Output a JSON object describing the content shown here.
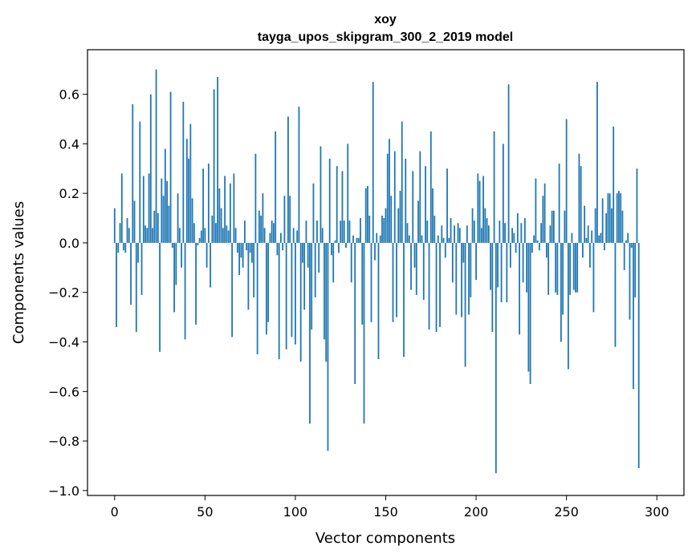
{
  "chart_data": {
    "type": "bar",
    "title": "xoy",
    "subtitle": "tayga_upos_skipgram_300_2_2019 model",
    "xlabel": "Vector components",
    "ylabel": "Components values",
    "xlim": [
      -15,
      315
    ],
    "ylim": [
      -1.02,
      0.78
    ],
    "xticks": [
      0,
      50,
      100,
      150,
      200,
      250,
      300
    ],
    "yticks": [
      -1.0,
      -0.8,
      -0.6,
      -0.4,
      -0.2,
      0.0,
      0.2,
      0.4,
      0.6
    ],
    "ytick_labels": [
      "−1.0",
      "−0.8",
      "−0.6",
      "−0.4",
      "−0.2",
      "0.0",
      "0.2",
      "0.4",
      "0.6"
    ],
    "color": "#1f77b4",
    "grid": false,
    "values": [
      0.14,
      -0.34,
      -0.04,
      0.08,
      0.28,
      -0.03,
      -0.04,
      0.1,
      0.06,
      -0.25,
      0.56,
      0.17,
      -0.36,
      -0.08,
      0.49,
      -0.21,
      0.27,
      0.07,
      0.06,
      0.28,
      0.6,
      0.06,
      0.13,
      0.7,
      0.12,
      -0.44,
      0.26,
      0.19,
      0.38,
      0.25,
      0.15,
      0.61,
      -0.02,
      -0.28,
      -0.17,
      0.2,
      0.06,
      -0.1,
      0.57,
      -0.39,
      0.42,
      0.34,
      0.48,
      0.18,
      0.08,
      -0.33,
      -0.01,
      0.02,
      0.05,
      0.3,
      0.06,
      -0.1,
      0.32,
      -0.18,
      0.11,
      0.62,
      0.08,
      0.67,
      0.22,
      0.14,
      0.06,
      0.27,
      0.07,
      0.05,
      0.24,
      -0.38,
      0.28,
      0.06,
      -0.04,
      -0.13,
      -0.06,
      -0.1,
      0.09,
      -0.03,
      -0.27,
      -0.04,
      -0.08,
      -0.22,
      0.36,
      -0.45,
      0.13,
      0.11,
      0.2,
      0.06,
      -0.37,
      -0.32,
      0.04,
      0.09,
      0.08,
      0.45,
      -0.05,
      -0.47,
      0.04,
      -0.03,
      0.19,
      -0.43,
      0.51,
      0.19,
      -0.38,
      0.06,
      -0.41,
      0.05,
      0.55,
      -0.48,
      -0.08,
      -0.27,
      0.09,
      -0.1,
      -0.73,
      -0.35,
      0.24,
      -0.22,
      0.09,
      -0.12,
      0.39,
      0.06,
      -0.39,
      -0.48,
      -0.84,
      0.34,
      -0.05,
      -0.16,
      0.01,
      0.31,
      -0.04,
      0.09,
      0.29,
      0.09,
      -0.02,
      0.4,
      0.09,
      -0.16,
      0.03,
      -0.57,
      0.02,
      0.02,
      0.1,
      -0.33,
      -0.73,
      0.22,
      0.23,
      0.11,
      -0.32,
      0.65,
      -0.07,
      0.04,
      -0.47,
      0.03,
      0.11,
      0.1,
      0.14,
      0.36,
      0.42,
      0.19,
      -0.32,
      0.37,
      -0.3,
      0.14,
      0.21,
      0.49,
      -0.46,
      0.34,
      0.08,
      0.03,
      -0.19,
      0.29,
      -0.1,
      -0.21,
      0.17,
      0.37,
      0.03,
      -0.23,
      0.31,
      0.09,
      -0.35,
      0.45,
      0.22,
      0.11,
      -0.36,
      0.03,
      -0.34,
      0.07,
      0.02,
      -0.06,
      0.3,
      0.02,
      0.1,
      -0.16,
      0.07,
      -0.29,
      0.08,
      0.06,
      -0.3,
      -0.08,
      -0.5,
      0.07,
      -0.29,
      -0.22,
      0.14,
      0.09,
      -0.15,
      0.28,
      0.25,
      0.06,
      0.27,
      0.14,
      0.1,
      0.07,
      -0.19,
      -0.36,
      0.45,
      -0.93,
      -0.18,
      0.09,
      -0.24,
      0.4,
      0.08,
      -0.24,
      0.64,
      -0.1,
      0.06,
      0.04,
      -0.04,
      0.12,
      -0.37,
      0.08,
      -0.16,
      0.1,
      -0.2,
      -0.52,
      -0.57,
      -0.04,
      0.03,
      0.26,
      0.01,
      -0.03,
      0.08,
      0.19,
      0.24,
      -0.06,
      -0.21,
      0.07,
      0.13,
      0.13,
      -0.2,
      -0.21,
      0.32,
      -0.4,
      -0.29,
      0.13,
      0.5,
      -0.51,
      -0.21,
      0.04,
      -0.19,
      -0.2,
      -0.2,
      0.36,
      0.31,
      -0.06,
      0.15,
      0.02,
      0.07,
      -0.1,
      0.05,
      -0.28,
      0.14,
      0.65,
      0.03,
      0.04,
      0.18,
      -0.03,
      0.12,
      0.2,
      0.2,
      0.14,
      0.47,
      -0.42,
      0.2,
      0.21,
      0.2,
      0.13,
      -0.11,
      0.01,
      0.04,
      -0.31,
      -0.02,
      -0.59,
      -0.22,
      0.3,
      -0.91
    ]
  }
}
